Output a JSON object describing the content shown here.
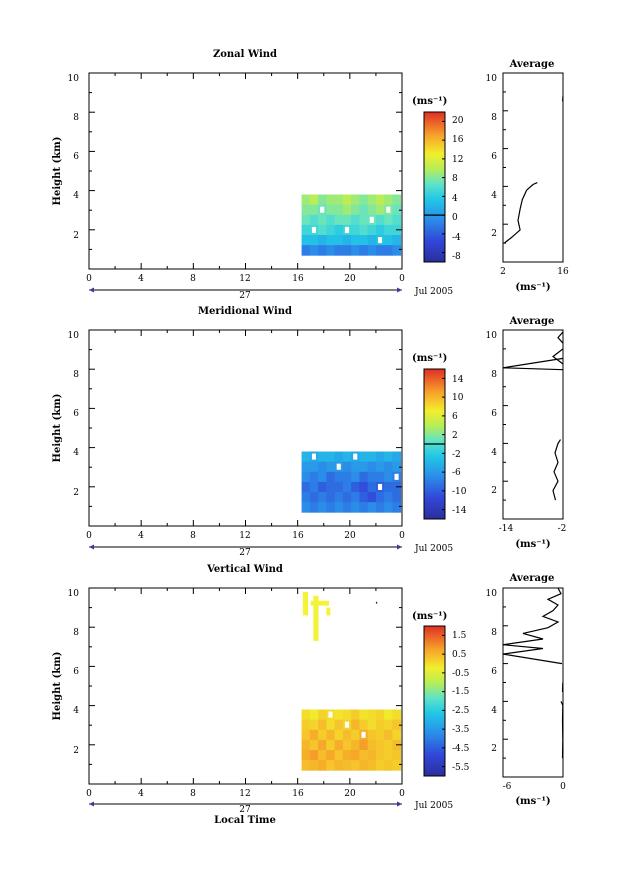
{
  "chart_data": [
    {
      "type": "heatmap",
      "title": "Zonal Wind",
      "ylabel": "Height (km)",
      "xlim": [
        0,
        24
      ],
      "ylim": [
        0,
        10
      ],
      "x_ticks": [
        "0",
        "4",
        "8",
        "12",
        "16",
        "20",
        "0"
      ],
      "y_ticks": [
        "2",
        "4",
        "6",
        "8",
        "10"
      ],
      "day_label": "27",
      "month_label": "Jul 2005",
      "data_region": {
        "x": [
          16.3,
          23.9
        ],
        "y": [
          0.7,
          3.8
        ]
      },
      "colorbar": {
        "unit": "(ms⁻¹)",
        "ticks": [
          "20",
          "16",
          "12",
          "8",
          "4",
          "0",
          "-4",
          "-8"
        ],
        "range": [
          -10,
          22
        ],
        "zero_line": 0
      },
      "field": {
        "rows_from_top": [
          [
            9,
            10,
            8,
            9,
            9,
            10,
            9,
            8,
            9,
            10,
            9,
            8
          ],
          [
            8,
            8,
            7,
            8,
            8,
            9,
            8,
            7,
            8,
            9,
            8,
            7
          ],
          [
            7,
            6,
            7,
            6,
            7,
            7,
            6,
            7,
            7,
            6,
            7,
            6
          ],
          [
            5,
            5,
            6,
            5,
            4,
            5,
            5,
            6,
            5,
            4,
            5,
            5
          ],
          [
            3,
            3,
            2,
            3,
            3,
            2,
            3,
            3,
            2,
            3,
            3,
            2
          ],
          [
            -2,
            -1,
            -2,
            -1,
            -2,
            -2,
            -1,
            -2,
            -1,
            -2,
            -2,
            -1
          ]
        ],
        "gaps": [
          [
            1,
            2
          ],
          [
            2,
            8
          ],
          [
            3,
            5
          ],
          [
            4,
            9
          ],
          [
            1,
            10
          ],
          [
            3,
            1
          ]
        ]
      },
      "profile": {
        "title": "Average",
        "xlabel": "(ms⁻¹)",
        "x_ticks": [
          "2",
          "16"
        ],
        "xlim": [
          2,
          16
        ],
        "y_ticks": [
          "2",
          "4",
          "6",
          "8",
          "10"
        ],
        "ylim": [
          0,
          10
        ],
        "points": [
          [
            2.3,
            1.0
          ],
          [
            4.0,
            1.3
          ],
          [
            6.0,
            1.7
          ],
          [
            5.5,
            2.2
          ],
          [
            6.0,
            2.8
          ],
          [
            6.5,
            3.3
          ],
          [
            7.5,
            3.8
          ],
          [
            9.0,
            4.1
          ],
          [
            10.0,
            4.2
          ]
        ],
        "extra": [
          [
            [
              15.9,
              8.5
            ],
            [
              16.0,
              8.8
            ]
          ]
        ]
      }
    },
    {
      "type": "heatmap",
      "title": "Meridional Wind",
      "ylabel": "Height (km)",
      "xlim": [
        0,
        24
      ],
      "ylim": [
        0,
        10
      ],
      "x_ticks": [
        "0",
        "4",
        "8",
        "12",
        "16",
        "20",
        "0"
      ],
      "y_ticks": [
        "2",
        "4",
        "6",
        "8",
        "10"
      ],
      "day_label": "27",
      "month_label": "Jul 2005",
      "data_region": {
        "x": [
          16.3,
          23.9
        ],
        "y": [
          0.7,
          3.8
        ]
      },
      "colorbar": {
        "unit": "(ms⁻¹)",
        "ticks": [
          "14",
          "10",
          "6",
          "2",
          "-2",
          "-6",
          "-10",
          "-14"
        ],
        "range": [
          -16,
          16
        ],
        "zero_line": 0
      },
      "field": {
        "rows_from_top": [
          [
            -4,
            -5,
            -4,
            -4,
            -5,
            -4,
            -5,
            -4,
            -4,
            -5,
            -4,
            -5
          ],
          [
            -6,
            -6,
            -7,
            -6,
            -6,
            -7,
            -6,
            -6,
            -7,
            -6,
            -7,
            -6
          ],
          [
            -7,
            -8,
            -7,
            -9,
            -8,
            -8,
            -7,
            -9,
            -8,
            -8,
            -7,
            -8
          ],
          [
            -9,
            -8,
            -10,
            -9,
            -9,
            -8,
            -10,
            -11,
            -9,
            -10,
            -9,
            -9
          ],
          [
            -8,
            -9,
            -8,
            -9,
            -8,
            -9,
            -8,
            -10,
            -11,
            -9,
            -8,
            -9
          ],
          [
            -7,
            -8,
            -7,
            -8,
            -7,
            -8,
            -7,
            -8,
            -7,
            -8,
            -7,
            -8
          ]
        ],
        "gaps": [
          [
            0,
            1
          ],
          [
            0,
            6
          ],
          [
            1,
            4
          ],
          [
            3,
            9
          ],
          [
            2,
            11
          ]
        ]
      },
      "profile": {
        "title": "Average",
        "xlabel": "(ms⁻¹)",
        "x_ticks": [
          "-14",
          "-2"
        ],
        "xlim": [
          -14,
          -2
        ],
        "y_ticks": [
          "2",
          "4",
          "6",
          "8",
          "10"
        ],
        "ylim": [
          0,
          10
        ],
        "points": [
          [
            -3.5,
            1.0
          ],
          [
            -4.0,
            1.5
          ],
          [
            -3.0,
            2.0
          ],
          [
            -3.8,
            2.5
          ],
          [
            -3.0,
            3.0
          ],
          [
            -3.6,
            3.5
          ],
          [
            -3.0,
            4.0
          ],
          [
            -2.5,
            4.2
          ]
        ],
        "extra": [
          [
            [
              -2.0,
              8.5
            ],
            [
              -14.0,
              8.0
            ],
            [
              -2.0,
              7.9
            ]
          ],
          [
            [
              -2.0,
              9.0
            ],
            [
              -4.0,
              8.6
            ],
            [
              -2.0,
              8.2
            ]
          ],
          [
            [
              -2.0,
              9.9
            ],
            [
              -3.0,
              9.6
            ],
            [
              -2.0,
              9.3
            ]
          ]
        ]
      }
    },
    {
      "type": "heatmap",
      "title": "Vertical Wind",
      "ylabel": "Height (km)",
      "xlabel": "Local Time",
      "xlim": [
        0,
        24
      ],
      "ylim": [
        0,
        10
      ],
      "x_ticks": [
        "0",
        "4",
        "8",
        "12",
        "16",
        "20",
        "0"
      ],
      "y_ticks": [
        "2",
        "4",
        "6",
        "8",
        "10"
      ],
      "day_label": "27",
      "month_label": "Jul 2005",
      "data_region": {
        "x": [
          16.3,
          23.9
        ],
        "y": [
          0.7,
          3.8
        ]
      },
      "colorbar": {
        "unit": "(ms⁻¹)",
        "ticks": [
          "1.5",
          "0.5",
          "-0.5",
          "-1.5",
          "-2.5",
          "-3.5",
          "-4.5",
          "-5.5"
        ],
        "range": [
          -6,
          2
        ],
        "zero_line": null
      },
      "field": {
        "rows_from_top": [
          [
            0.0,
            -0.2,
            0.1,
            0.0,
            -0.1,
            0.0,
            0.2,
            -0.1,
            0.0,
            0.1,
            -0.2,
            0.0
          ],
          [
            0.2,
            0.1,
            0.4,
            0.0,
            0.3,
            0.1,
            0.5,
            0.2,
            0.0,
            0.2,
            0.1,
            0.3
          ],
          [
            0.3,
            0.6,
            0.2,
            0.5,
            0.1,
            0.4,
            0.2,
            0.6,
            0.3,
            0.2,
            0.4,
            0.1
          ],
          [
            0.5,
            0.3,
            0.7,
            0.2,
            0.6,
            0.3,
            0.5,
            0.8,
            0.4,
            0.3,
            0.2,
            0.4
          ],
          [
            0.6,
            0.8,
            0.4,
            0.7,
            0.3,
            0.6,
            0.7,
            0.4,
            0.5,
            0.3,
            0.2,
            0.3
          ],
          [
            0.4,
            0.5,
            0.6,
            0.3,
            0.5,
            0.4,
            0.3,
            0.5,
            0.4,
            0.2,
            0.3,
            0.2
          ]
        ],
        "gaps": [
          [
            0,
            3
          ],
          [
            1,
            5
          ],
          [
            2,
            7
          ]
        ],
        "upper_patches": [
          {
            "x": [
              16.4,
              16.8
            ],
            "y": [
              8.6,
              9.8
            ],
            "value": -1.0
          },
          {
            "x": [
              17.2,
              17.6
            ],
            "y": [
              7.3,
              9.6
            ],
            "value": -1.0
          },
          {
            "x": [
              17.0,
              18.4
            ],
            "y": [
              9.1,
              9.35
            ],
            "value": -1.0
          },
          {
            "x": [
              18.2,
              18.5
            ],
            "y": [
              8.6,
              9.0
            ],
            "value": -1.0
          },
          {
            "x": [
              22.0,
              22.1
            ],
            "y": [
              9.2,
              9.3
            ],
            "value": -6.0
          }
        ]
      },
      "profile": {
        "title": "Average",
        "xlabel": "(ms⁻¹)",
        "x_ticks": [
          "-6",
          "0"
        ],
        "xlim": [
          -6,
          0
        ],
        "y_ticks": [
          "2",
          "4",
          "6",
          "8",
          "10"
        ],
        "ylim": [
          0,
          10
        ],
        "points": [
          [
            -0.05,
            1.0
          ],
          [
            -0.02,
            2.0
          ],
          [
            -0.05,
            3.0
          ],
          [
            -0.02,
            3.8
          ],
          [
            -0.2,
            4.0
          ]
        ],
        "extra": [
          [
            [
              -0.1,
              6.0
            ],
            [
              -6.0,
              6.5
            ],
            [
              -2.0,
              6.8
            ],
            [
              -6.0,
              7.0
            ],
            [
              -2.0,
              7.3
            ],
            [
              -4.0,
              7.6
            ],
            [
              -1.5,
              7.9
            ],
            [
              -0.5,
              8.2
            ],
            [
              -2.0,
              8.5
            ],
            [
              -1.0,
              8.8
            ],
            [
              -0.5,
              9.1
            ],
            [
              -1.5,
              9.4
            ],
            [
              -0.2,
              9.7
            ],
            [
              -0.5,
              10.0
            ]
          ],
          [
            [
              -0.05,
              4.5
            ],
            [
              -0.02,
              5.0
            ]
          ]
        ]
      }
    }
  ]
}
